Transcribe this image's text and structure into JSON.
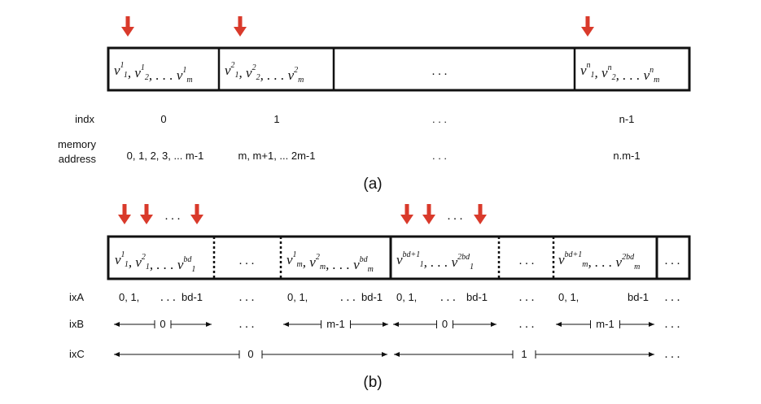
{
  "colors": {
    "arrow": "#d93a2b",
    "line": "#111111"
  },
  "part_a": {
    "cells": [
      {
        "kind": "vector",
        "superscript": "1",
        "last_sub": "m"
      },
      {
        "kind": "vector",
        "superscript": "2",
        "last_sub": "m"
      },
      {
        "kind": "ellipsis",
        "text": ". . ."
      },
      {
        "kind": "vector",
        "superscript": "n",
        "last_sub": "m"
      }
    ],
    "row_labels": {
      "indx": "indx",
      "memory_line1": "memory",
      "memory_line2": "address"
    },
    "indx_values": [
      "0",
      "1",
      ". . .",
      "n-1"
    ],
    "address_values": [
      "0, 1, 2, 3, ... m-1",
      "m, m+1, ... 2m-1",
      ". . .",
      "n.m-1"
    ],
    "arrow_dots": "",
    "caption": "(a)"
  },
  "part_b": {
    "arrow_dots": ". . .",
    "cells": [
      {
        "kind": "vec-b1",
        "s1": "1",
        "s2": "2",
        "sl": "bd",
        "sub": "1"
      },
      {
        "kind": "ellipsis",
        "text": ". . ."
      },
      {
        "kind": "vec-b1",
        "s1": "1",
        "s2": "2",
        "sl": "bd",
        "sub": "m"
      },
      {
        "kind": "vec-b2",
        "s1": "bd+1",
        "sl": "2bd",
        "sub": "1"
      },
      {
        "kind": "ellipsis",
        "text": ". . ."
      },
      {
        "kind": "vec-b2",
        "s1": "bd+1",
        "sl": "2bd",
        "sub": "m"
      },
      {
        "kind": "ellipsis",
        "text": ". . ."
      }
    ],
    "row_labels": {
      "ixA": "ixA",
      "ixB": "ixB",
      "ixC": "ixC"
    },
    "ixA": {
      "lead": "0, 1,",
      "dots": ". . .",
      "end": "bd-1",
      "end_only_text": "bd-1"
    },
    "ixB_labels": [
      "0",
      "m-1",
      "0",
      "m-1"
    ],
    "ixC_labels": [
      "0",
      "1"
    ],
    "caption": "(b)"
  }
}
